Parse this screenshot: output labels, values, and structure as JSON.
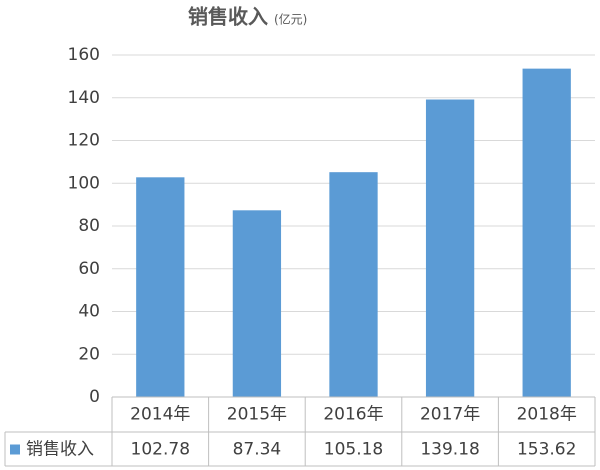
{
  "chart_data": {
    "type": "bar",
    "title": "销售收入",
    "unit": "(亿元)",
    "categories": [
      "2014年",
      "2015年",
      "2016年",
      "2017年",
      "2018年"
    ],
    "series": [
      {
        "name": "销售收入",
        "color": "#5b9bd5",
        "values": [
          102.78,
          87.34,
          105.18,
          139.18,
          153.62
        ]
      }
    ],
    "ylim": [
      0,
      160
    ],
    "yticks": [
      0,
      20,
      40,
      60,
      80,
      100,
      120,
      140,
      160
    ],
    "grid": true,
    "data_table": true
  }
}
